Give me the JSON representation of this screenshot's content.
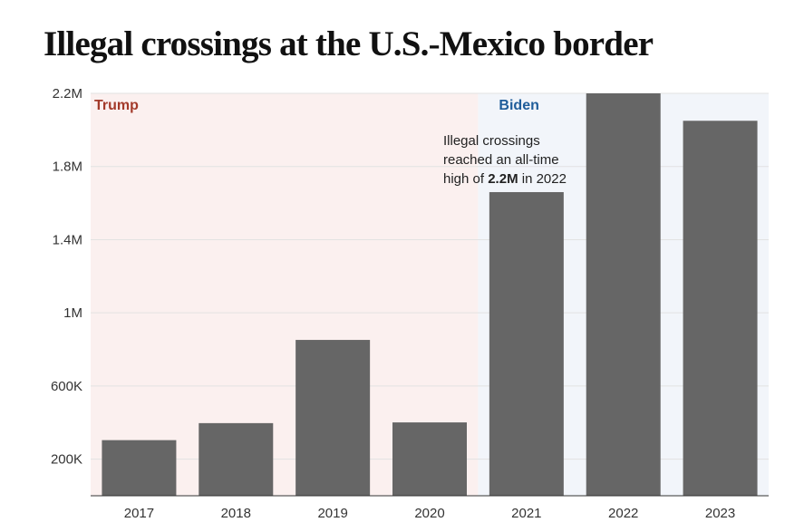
{
  "title": "Illegal crossings at the U.S.-Mexico border",
  "chart_data": {
    "type": "bar",
    "title": "Illegal crossings at the U.S.-Mexico border",
    "xlabel": "",
    "ylabel": "",
    "categories": [
      "2017",
      "2018",
      "2019",
      "2020",
      "2021",
      "2022",
      "2023"
    ],
    "values": [
      304000,
      397000,
      852000,
      401000,
      1660000,
      2210000,
      2050000
    ],
    "ylim": [
      0,
      2200000
    ],
    "y_ticks": [
      200000,
      600000,
      1000000,
      1400000,
      1800000,
      2200000
    ],
    "y_tick_labels": [
      "200K",
      "600K",
      "1M",
      "1.4M",
      "1.8M",
      "2.2M"
    ],
    "grid": true,
    "bar_color": "#666666",
    "eras": [
      {
        "label": "Trump",
        "color": "#a33a2a",
        "shade": "#fbf0ef",
        "start": "2017",
        "end": "2020"
      },
      {
        "label": "Biden",
        "color": "#1f5d9a",
        "shade": "#f2f5fa",
        "start": "2021",
        "end": "2023"
      }
    ],
    "annotation": {
      "line1": "Illegal crossings",
      "line2": "reached an all-time",
      "line3_pre": "high of ",
      "line3_bold": "2.2M",
      "line3_post": " in 2022"
    }
  }
}
